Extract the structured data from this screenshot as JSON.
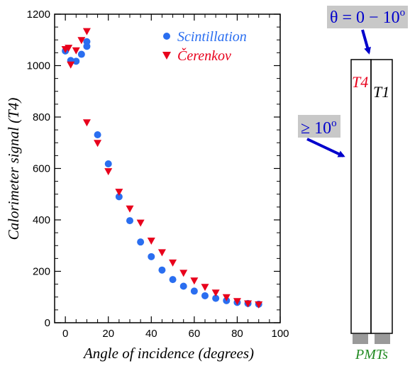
{
  "chart_data": {
    "type": "scatter",
    "xlabel": "Angle of incidence (degrees)",
    "ylabel": "Calorimeter signal (T4)",
    "xlim": [
      -5,
      100
    ],
    "ylim": [
      0,
      1200
    ],
    "x_ticks": [
      0,
      20,
      40,
      60,
      80,
      100
    ],
    "y_ticks": [
      0,
      200,
      400,
      600,
      800,
      1000,
      1200
    ],
    "legend_position": "top-right",
    "series": [
      {
        "name": "Scintillation",
        "marker": "circle",
        "color": "#2a6ef0",
        "x": [
          0,
          2.5,
          5,
          7.5,
          10,
          10,
          15,
          20,
          25,
          30,
          35,
          40,
          45,
          50,
          55,
          60,
          65,
          70,
          75,
          80,
          85,
          90
        ],
        "y": [
          1057,
          1020,
          1017,
          1044,
          1075,
          1093,
          731,
          618,
          490,
          397,
          314,
          257,
          205,
          168,
          142,
          123,
          105,
          95,
          86,
          79,
          75,
          72
        ]
      },
      {
        "name": "Čerenkov",
        "marker": "triangle-down",
        "color": "#e8001c",
        "x": [
          0,
          1.5,
          2.5,
          5,
          7.5,
          10,
          10,
          15,
          20,
          25,
          30,
          35,
          40,
          45,
          50,
          55,
          60,
          65,
          70,
          75,
          80,
          85,
          90
        ],
        "y": [
          1065,
          1070,
          1005,
          1060,
          1100,
          1135,
          780,
          700,
          590,
          510,
          445,
          390,
          320,
          275,
          235,
          195,
          165,
          140,
          118,
          100,
          85,
          76,
          72
        ]
      }
    ]
  },
  "diagram": {
    "top_label": "θ = 0 − 10",
    "top_label_sup": "o",
    "side_label": "≥ 10",
    "side_label_sup": "o",
    "left_bar_label": "T4",
    "right_bar_label": "T1",
    "bottom_label": "PMTs",
    "colors": {
      "arrow": "#0000cc",
      "label_box": "#c8c8c8",
      "t4": "#e8001c",
      "t1": "#000000",
      "pmts": "#228b22",
      "pmt_block": "#9a9a9a"
    }
  }
}
